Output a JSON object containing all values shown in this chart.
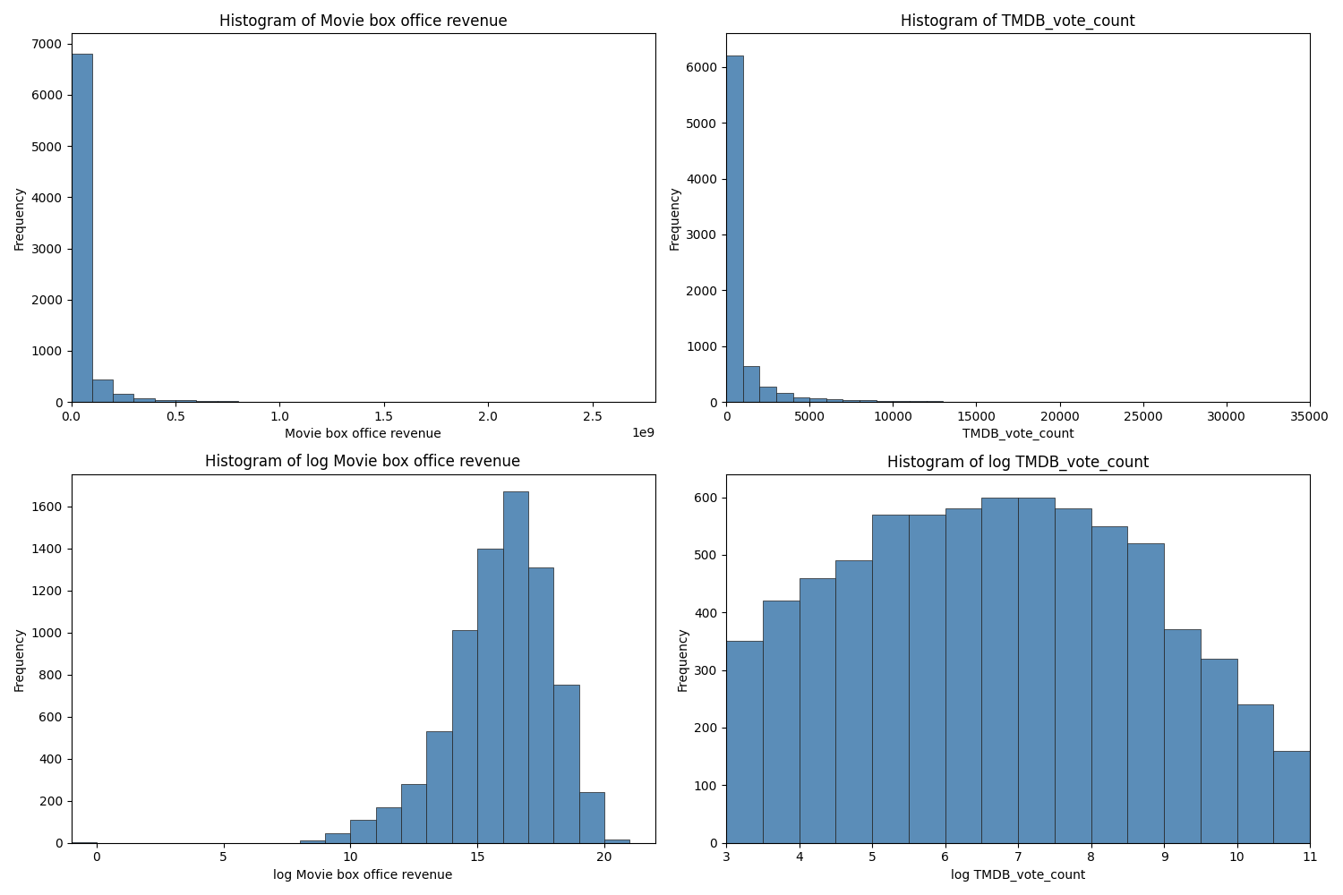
{
  "subplot_titles": [
    "Histogram of Movie box office revenue",
    "Histogram of TMDB_vote_count",
    "Histogram of log Movie box office revenue",
    "Histogram of log TMDB_vote_count"
  ],
  "xlabels": [
    "Movie box office revenue",
    "TMDB_vote_count",
    "log Movie box office revenue",
    "log TMDB_vote_count"
  ],
  "ylabel": "Frequency",
  "bar_color": "#5B8DB8",
  "bar_edgecolor": "#1f1f1f",
  "revenue_bin_edges": [
    0,
    100000000.0,
    200000000.0,
    300000000.0,
    400000000.0,
    500000000.0,
    600000000.0,
    700000000.0,
    800000000.0,
    900000000.0,
    1000000000.0,
    1100000000.0,
    1200000000.0,
    1300000000.0,
    1400000000.0,
    1500000000.0,
    1600000000.0,
    1700000000.0,
    1800000000.0,
    1900000000.0,
    2000000000.0,
    2100000000.0,
    2200000000.0,
    2300000000.0,
    2400000000.0,
    2500000000.0,
    2600000000.0,
    2700000000.0,
    2800000000.0
  ],
  "revenue_counts": [
    6800,
    440,
    155,
    75,
    45,
    30,
    18,
    12,
    8,
    6,
    5,
    4,
    3,
    3,
    2,
    2,
    2,
    1,
    1,
    1,
    1,
    1,
    1,
    0,
    0,
    0,
    0,
    1
  ],
  "vote_bin_edges": [
    0,
    1000,
    2000,
    3000,
    4000,
    5000,
    6000,
    7000,
    8000,
    9000,
    10000,
    11000,
    12000,
    13000,
    14000,
    15000,
    16000,
    17000,
    18000,
    19000,
    20000,
    21000,
    22000,
    23000,
    24000,
    25000,
    26000,
    27000,
    28000,
    29000,
    30000,
    31000,
    32000,
    33000,
    34000,
    35000
  ],
  "vote_counts": [
    6200,
    650,
    270,
    155,
    80,
    60,
    45,
    35,
    28,
    22,
    18,
    14,
    12,
    10,
    8,
    7,
    6,
    5,
    4,
    4,
    3,
    0,
    0,
    0,
    0,
    0,
    0,
    0,
    0,
    0,
    0,
    0,
    0,
    0,
    0
  ],
  "log_revenue_bin_edges": [
    -1,
    0,
    1,
    2,
    3,
    4,
    5,
    6,
    7,
    8,
    9,
    10,
    11,
    12,
    13,
    14,
    15,
    16,
    17,
    18,
    19,
    20,
    21,
    22
  ],
  "log_revenue_counts": [
    2,
    0,
    0,
    0,
    0,
    0,
    0,
    0,
    0,
    10,
    45,
    110,
    170,
    280,
    530,
    1010,
    1400,
    1670,
    1310,
    750,
    240,
    15,
    0
  ],
  "log_vote_bin_edges": [
    3.0,
    3.5,
    4.0,
    4.5,
    5.0,
    5.5,
    6.0,
    6.5,
    7.0,
    7.5,
    8.0,
    8.5,
    9.0,
    9.5,
    10.0,
    10.5,
    11.0
  ],
  "log_vote_counts": [
    350,
    420,
    460,
    490,
    570,
    570,
    580,
    600,
    600,
    580,
    550,
    520,
    370,
    320,
    240,
    160
  ]
}
